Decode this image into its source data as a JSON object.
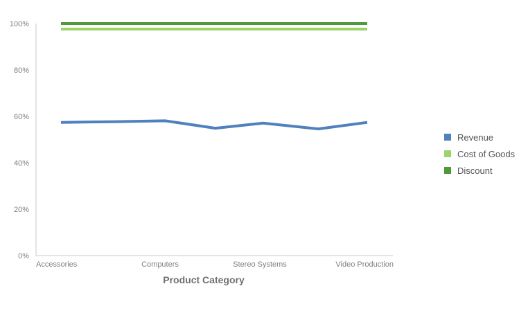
{
  "chart_data": {
    "type": "line",
    "title": "",
    "xlabel": "Product Category",
    "ylabel": "",
    "categories": [
      "Accessories",
      "Computers",
      "Stereo Systems",
      "Video Production"
    ],
    "x": [
      0,
      1.43,
      3.0,
      4.43,
      5.71,
      7.14
    ],
    "x_tick_positions": [
      0,
      2.43,
      4.71,
      7.14
    ],
    "ylim": [
      0,
      100
    ],
    "y_ticks": [
      0,
      20,
      40,
      60,
      80,
      100
    ],
    "y_tick_labels": [
      "0%",
      "20%",
      "40%",
      "60%",
      "80%",
      "100%"
    ],
    "grid": false,
    "legend_position": "right",
    "series": [
      {
        "name": "Revenue",
        "color": "#4f81bd",
        "values": [
          57.4,
          57.7,
          58.1,
          54.9,
          57.1,
          54.6,
          57.4
        ],
        "x": [
          0,
          1.2,
          2.43,
          3.6,
          4.71,
          6.0,
          7.14
        ]
      },
      {
        "name": "Cost of Goods",
        "color": "#9bd46b",
        "values": [
          97.6,
          97.6,
          97.6,
          97.6,
          97.6,
          97.6,
          97.6
        ],
        "x": [
          0,
          1.2,
          2.43,
          3.6,
          4.71,
          6.0,
          7.14
        ]
      },
      {
        "name": "Discount",
        "color": "#4e9a3a",
        "values": [
          100,
          100,
          100,
          100,
          100,
          100,
          100
        ],
        "x": [
          0,
          1.2,
          2.43,
          3.6,
          4.71,
          6.0,
          7.14
        ]
      }
    ]
  }
}
